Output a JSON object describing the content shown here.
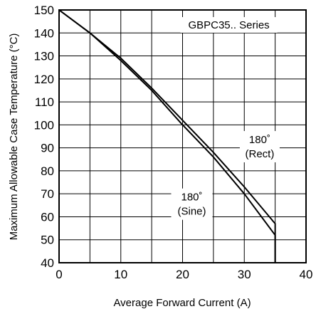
{
  "chart_data": {
    "type": "line",
    "xlabel": "Average Forward Current (A)",
    "ylabel": "Maximum Allowable Case Temperature (°C)",
    "xlim": [
      0,
      40
    ],
    "ylim": [
      40,
      150
    ],
    "xticks": [
      0,
      10,
      20,
      30,
      40
    ],
    "yticks": [
      40,
      50,
      60,
      70,
      80,
      90,
      100,
      110,
      120,
      130,
      140,
      150
    ],
    "grid": true,
    "series": [
      {
        "name": "",
        "x": [
          0,
          5,
          10,
          15,
          20,
          25,
          30,
          35,
          35
        ],
        "y": [
          150,
          140,
          129,
          116,
          102,
          88,
          73,
          57,
          40
        ]
      },
      {
        "name": "",
        "x": [
          0,
          5,
          10,
          15,
          20,
          25,
          30,
          35,
          35
        ],
        "y": [
          150,
          140,
          128,
          115,
          100,
          86,
          70,
          52,
          40
        ]
      }
    ],
    "annotations": [
      {
        "id": "series",
        "lines": [
          "GBPC35.. Series"
        ],
        "x": 27.5,
        "y": 143.5
      },
      {
        "id": "rect",
        "lines": [
          "180˚",
          "(Rect)"
        ],
        "x": 32.5,
        "y": 90.5
      },
      {
        "id": "sine",
        "lines": [
          "180˚",
          "(Sine)"
        ],
        "x": 21.5,
        "y": 65.5
      }
    ]
  }
}
